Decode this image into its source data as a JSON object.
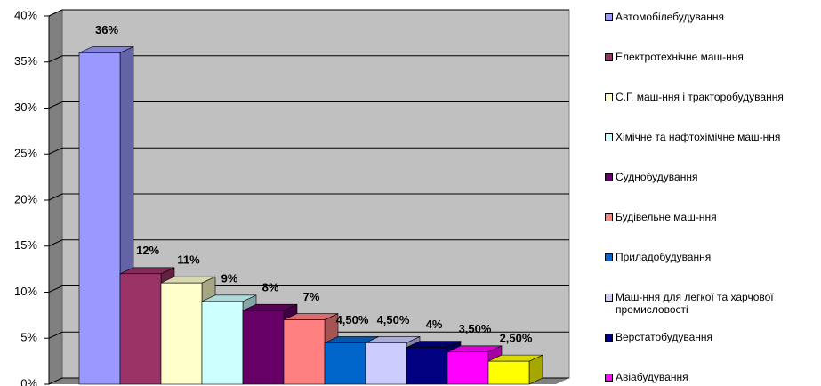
{
  "chart_data": {
    "type": "bar",
    "categories": [
      "Автомобілебудування",
      "Електротехнічне  маш-ння",
      "С.Г.  маш-ння  і тракторобудування",
      "Хімічне  та нафтохімічне  маш-ння",
      "Суднобудування",
      "Будівельне  маш-ння",
      "Приладобудування",
      "Маш-ння  для  легкої  та  харчової промисловості",
      "Верстатобудування",
      "Авіабудування",
      null
    ],
    "values": [
      36,
      12,
      11,
      9,
      8,
      7,
      4.5,
      4.5,
      4,
      3.5,
      2.5
    ],
    "value_labels": [
      "36%",
      "12%",
      "11%",
      "9%",
      "8%",
      "7%",
      "4,50%",
      "4,50%",
      "4%",
      "3,50%",
      "2,50%"
    ],
    "colors": [
      "#9999ff",
      "#993366",
      "#ffffcc",
      "#ccffff",
      "#660066",
      "#ff8080",
      "#0066cc",
      "#ccccff",
      "#000080",
      "#ff00ff",
      "#ffff00"
    ],
    "ylim": [
      0,
      40
    ],
    "yticks": [
      {
        "value": 0,
        "label": "0%"
      },
      {
        "value": 5,
        "label": "5%"
      },
      {
        "value": 10,
        "label": "10%"
      },
      {
        "value": 15,
        "label": "15%"
      },
      {
        "value": 20,
        "label": "20%"
      },
      {
        "value": 25,
        "label": "25%"
      },
      {
        "value": 30,
        "label": "30%"
      },
      {
        "value": 35,
        "label": "35%"
      },
      {
        "value": 40,
        "label": "40%"
      }
    ],
    "grid": true
  }
}
